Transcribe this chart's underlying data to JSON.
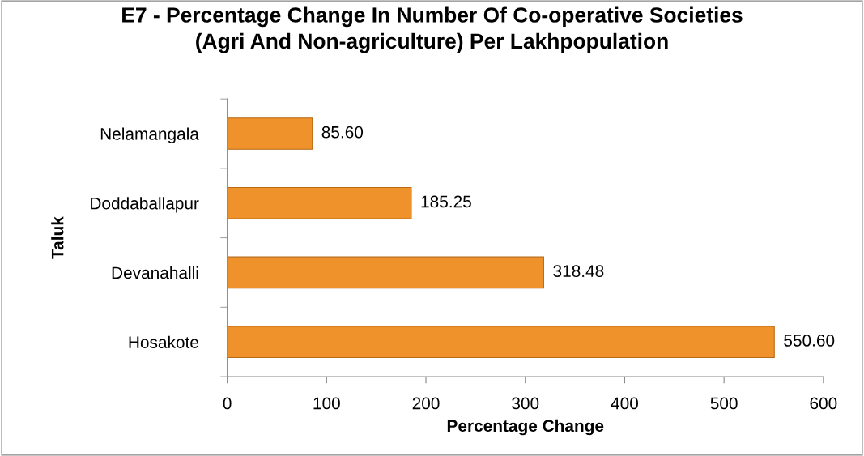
{
  "chart_data": {
    "type": "bar",
    "orientation": "horizontal",
    "title": "E7 - Percentage Change In Number Of Co-operative Societies\n(Agri And Non-agriculture) Per Lakhpopulation",
    "xlabel": "Percentage Change",
    "ylabel": "Taluk",
    "categories": [
      "Nelamangala",
      "Doddaballapur",
      "Devanahalli",
      "Hosakote"
    ],
    "values": [
      85.6,
      185.25,
      318.48,
      550.6
    ],
    "value_labels": [
      "85.60",
      "185.25",
      "318.48",
      "550.60"
    ],
    "color": "#f0922c",
    "xlim": [
      0,
      600
    ],
    "xticks": [
      0,
      100,
      200,
      300,
      400,
      500,
      600
    ],
    "grid": false,
    "legend": false
  }
}
